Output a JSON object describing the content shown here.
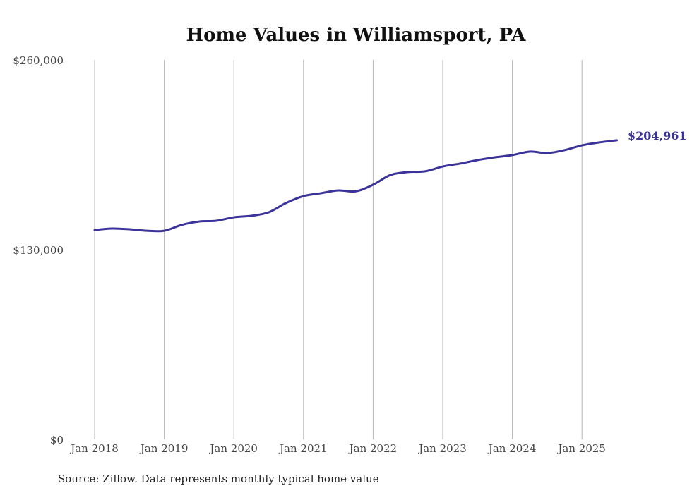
{
  "chart_data": {
    "type": "line",
    "title": "Home Values in Williamsport, PA",
    "xlabel": "",
    "ylabel": "",
    "ylim": [
      0,
      260000
    ],
    "yticks": [
      0,
      130000,
      260000
    ],
    "ytick_labels": [
      "$0",
      "$130,000",
      "$260,000"
    ],
    "xticks": [
      2018,
      2019,
      2020,
      2021,
      2022,
      2023,
      2024,
      2025
    ],
    "xtick_labels": [
      "Jan 2018",
      "Jan 2019",
      "Jan 2020",
      "Jan 2021",
      "Jan 2022",
      "Jan 2023",
      "Jan 2024",
      "Jan 2025"
    ],
    "xlim": [
      2017.99,
      2025.5
    ],
    "grid": "vertical",
    "series": [
      {
        "name": "Typical home value",
        "color": "#3b3399",
        "x": [
          2018,
          2018.25,
          2018.5,
          2018.75,
          2019,
          2019.25,
          2019.5,
          2019.75,
          2020,
          2020.25,
          2020.5,
          2020.75,
          2021,
          2021.25,
          2021.5,
          2021.75,
          2022,
          2022.25,
          2022.5,
          2022.75,
          2023,
          2023.25,
          2023.5,
          2023.75,
          2024,
          2024.25,
          2024.5,
          2024.75,
          2025,
          2025.25,
          2025.5
        ],
        "values": [
          143500,
          144500,
          144000,
          143000,
          143000,
          147000,
          149300,
          149800,
          152200,
          153200,
          155600,
          162000,
          166700,
          168700,
          170600,
          170000,
          174500,
          181200,
          183200,
          183700,
          187000,
          189000,
          191400,
          193300,
          194800,
          197200,
          196200,
          198200,
          201500,
          203500,
          204961
        ]
      }
    ],
    "end_label": "$204,961",
    "source": "Source: Zillow. Data represents monthly typical home value"
  }
}
